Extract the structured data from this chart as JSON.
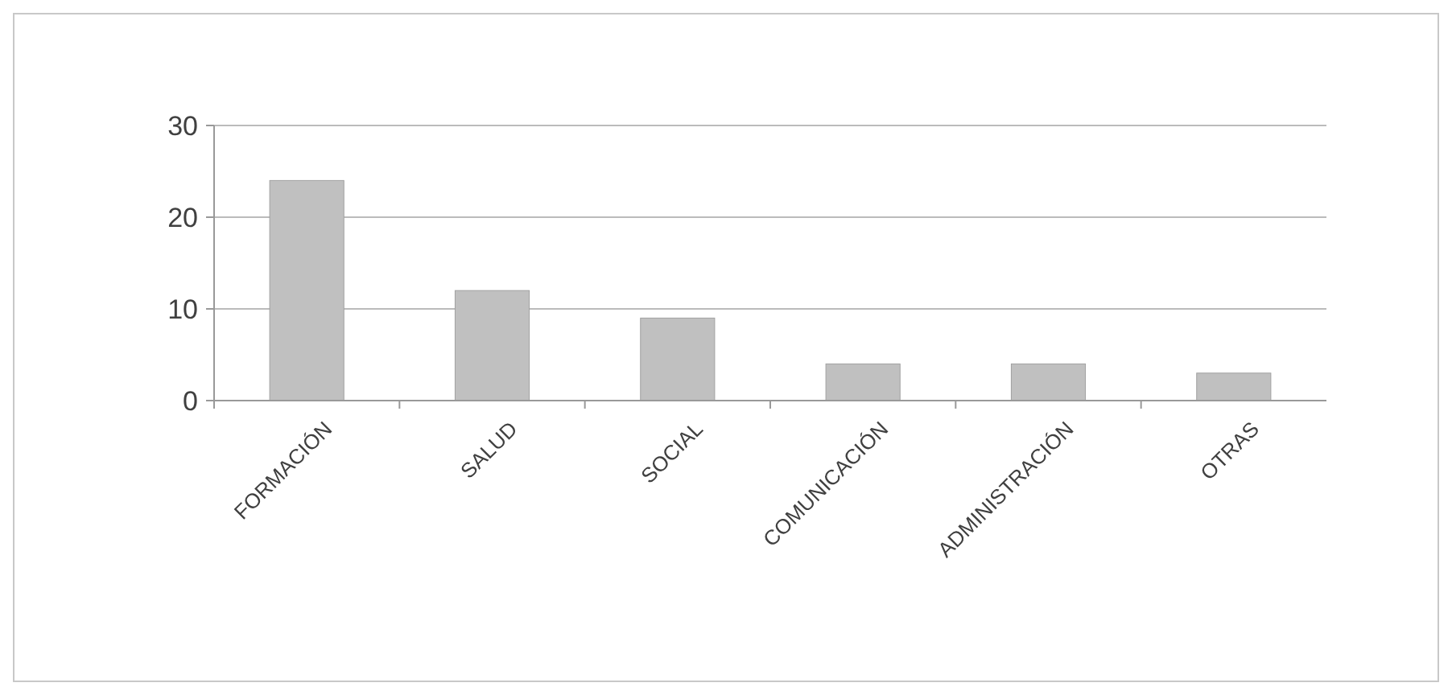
{
  "chart_data": {
    "type": "bar",
    "categories": [
      "FORMACIÓN",
      "SALUD",
      "SOCIAL",
      "COMUNICACIÓN",
      "ADMINISTRACIÓN",
      "OTRAS"
    ],
    "values": [
      24,
      12,
      9,
      4,
      4,
      3
    ],
    "color": "#c0c0c0",
    "ylim": [
      0,
      30
    ],
    "yticks": [
      0,
      10,
      20,
      30
    ],
    "grid": "y"
  }
}
